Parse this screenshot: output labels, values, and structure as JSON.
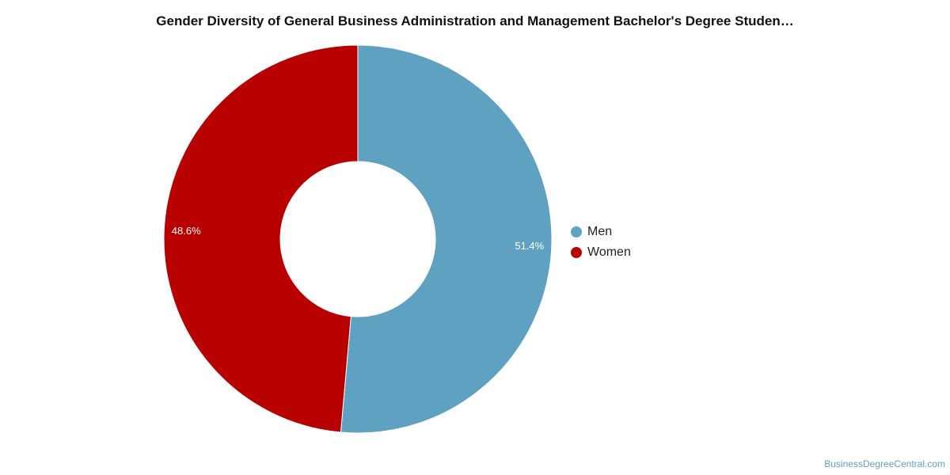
{
  "chart_data": {
    "type": "pie",
    "donut": true,
    "title": "Gender Diversity of General Business Administration and Management Bachelor's Degree Studen…",
    "slices": [
      {
        "label": "Men",
        "value": 51.4,
        "display": "51.4%",
        "color": "#5fa1c0"
      },
      {
        "label": "Women",
        "value": 48.6,
        "display": "48.6%",
        "color": "#b90000"
      }
    ],
    "legend_position": "right",
    "start": "top",
    "direction": "clockwise"
  },
  "footer": {
    "credit": "BusinessDegreeCentral.com"
  }
}
